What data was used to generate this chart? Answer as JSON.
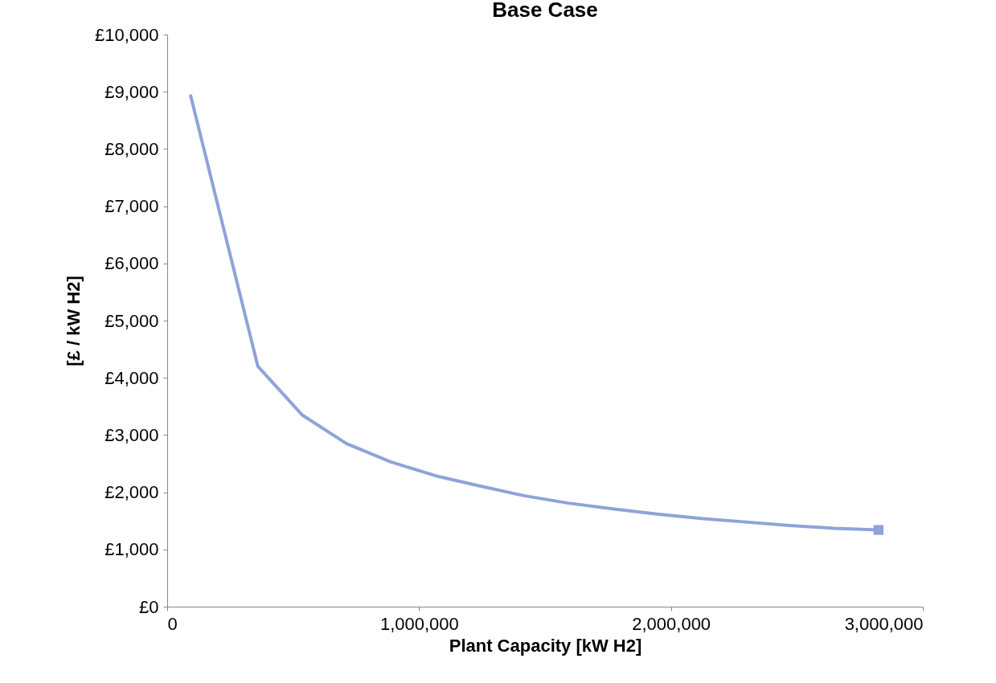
{
  "chart_data": {
    "type": "line",
    "title": "Base Case",
    "xlabel": "Plant Capacity [kW H2]",
    "ylabel": "[£ / kW H2]",
    "xlim": [
      0,
      3000000
    ],
    "xticks": [
      0,
      {
        "value": 1000000,
        "label": "1,000,000"
      },
      {
        "value": 2000000,
        "label": "2,000,000"
      },
      {
        "value": 3000000,
        "label": "3,000,000"
      }
    ],
    "ylim": [
      0,
      10000
    ],
    "yticks": [
      {
        "value": 0,
        "label": "£0"
      },
      {
        "value": 1000,
        "label": "£1,000"
      },
      {
        "value": 2000,
        "label": "£2,000"
      },
      {
        "value": 3000,
        "label": "£3,000"
      },
      {
        "value": 4000,
        "label": "£4,000"
      },
      {
        "value": 5000,
        "label": "£5,000"
      },
      {
        "value": 6000,
        "label": "£6,000"
      },
      {
        "value": 7000,
        "label": "£7,000"
      },
      {
        "value": 8000,
        "label": "£8,000"
      },
      {
        "value": 9000,
        "label": "£9,000"
      },
      {
        "value": 10000,
        "label": "£10,000"
      }
    ],
    "grid": false,
    "line_style": "solid",
    "series": [
      {
        "color": "#8ea4d8",
        "marker": "none",
        "x": [
          92000,
          360000,
          536000,
          712000,
          888000,
          1064000,
          1240000,
          1416000,
          1592000,
          1768000,
          1944000,
          2120000,
          2296000,
          2472000,
          2648000,
          2824000
        ],
        "values": [
          8950,
          4200,
          3350,
          2850,
          2530,
          2290,
          2110,
          1940,
          1810,
          1710,
          1620,
          1540,
          1480,
          1420,
          1370,
          1340
        ]
      },
      {
        "type": "scatter",
        "color": "#8ea4d8",
        "marker": "square",
        "x": [
          2824000
        ],
        "values": [
          1340
        ]
      }
    ]
  }
}
